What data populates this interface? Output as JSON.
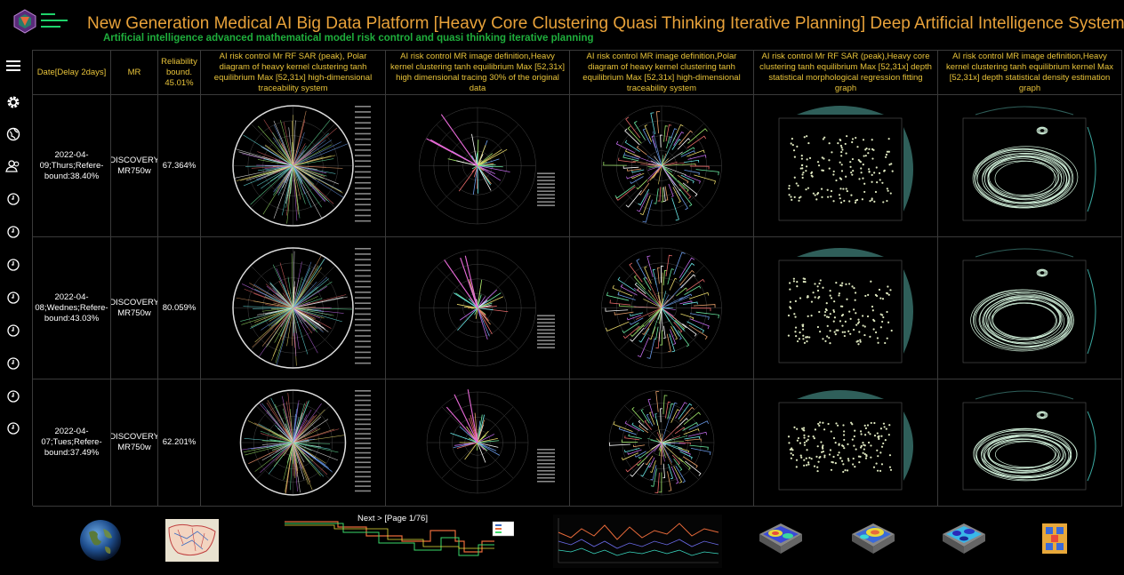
{
  "header": {
    "title": "New Generation Medical AI Big Data Platform [Heavy Core Clustering Quasi Thinking Iterative Planning] Deep Artificial Intelligence System",
    "subtitle": "Artificial intelligence advanced mathematical model risk control and quasi thinking iterative planning"
  },
  "sidebar": {
    "items": [
      "menu-icon",
      "gear-icon",
      "globe-icon",
      "users-icon",
      "clock-icon",
      "clock-icon",
      "clock-icon",
      "clock-icon",
      "clock-icon",
      "clock-icon",
      "clock-icon",
      "clock-icon"
    ]
  },
  "table": {
    "columns": [
      "Date[Delay 2days]",
      "MR",
      "Reliability bound. 45.01%",
      "AI risk control Mr RF SAR (peak), Polar diagram of heavy kernel clustering tanh equilibrium Max [52,31x] high-dimensional traceability system",
      "AI risk control MR image definition,Heavy kernel clustering tanh equilibrium Max [52,31x] high dimensional tracing 30% of the original data",
      "AI risk control MR image definition,Polar diagram of heavy kernel clustering tanh equilibrium Max [52,31x] high-dimensional traceability system",
      "AI risk control Mr RF SAR (peak),Heavy core clustering tanh equilibrium Max [52,31x] depth statistical morphological regression fitting graph",
      "AI risk control MR image definition,Heavy kernel clustering tanh equilibrium kernel Max [52,31x] depth statistical density estimation graph"
    ],
    "rows": [
      {
        "date": "2022-04-09;Thurs;Refere-bound:38.40%",
        "mr": "DISCOVERY MR750w",
        "reliability": "67.364%"
      },
      {
        "date": "2022-04-08;Wednes;Refere-bound:43.03%",
        "mr": "DISCOVERY MR750w",
        "reliability": "80.059%"
      },
      {
        "date": "2022-04-07;Tues;Refere-bound:37.49%",
        "mr": "DISCOVERY MR750w",
        "reliability": "62.201%"
      }
    ]
  },
  "footer": {
    "next_label": "Next > [Page 1/76]"
  },
  "colors": {
    "title": "#e8a23a",
    "subtitle": "#1fae3c",
    "header_text": "#e8c33a",
    "grid_line": "#3a3a3a",
    "accent": "#1fd36b"
  }
}
